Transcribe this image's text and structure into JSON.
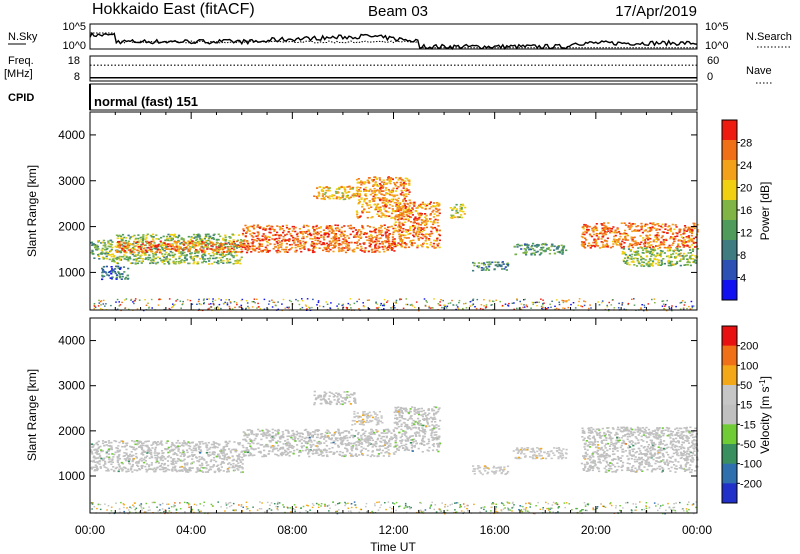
{
  "header": {
    "title": "Hokkaido East (fitACF)",
    "beam": "Beam 03",
    "date": "17/Apr/2019"
  },
  "sky_panel": {
    "left_label": "N.Sky",
    "right_label": "N.Search",
    "tick_top": "10^5",
    "tick_bottom": "10^0",
    "ylim_log10": [
      0,
      5
    ]
  },
  "freq_panel": {
    "left_label_1": "Freq.",
    "left_label_2": "[MHz]",
    "right_label": "Nave",
    "left_ticks": [
      "18",
      "8"
    ],
    "right_ticks": [
      "60",
      "0"
    ],
    "freq_mhz": 9.3,
    "nave": 38
  },
  "cpid_panel": {
    "label": "CPID",
    "program": "normal (fast) 151"
  },
  "colors": {
    "power_scale": [
      "#1010f0",
      "#2c50b4",
      "#3f7c82",
      "#4f9b5c",
      "#80b545",
      "#f0d010",
      "#f3a01a",
      "#f07018",
      "#ee1c10"
    ],
    "velocity_scale": [
      "#2030c8",
      "#2f6fae",
      "#3a8f5e",
      "#6fcc34",
      "#c0c0c0",
      "#c6c6c6",
      "#f3a818",
      "#f07018",
      "#e81010"
    ],
    "ground_scatter": "#b8b8b0"
  },
  "chart_data": [
    {
      "type": "heatmap",
      "name": "power",
      "xlabel": "",
      "ylabel": "Slant Range [km]",
      "xlim_hours": [
        0,
        24
      ],
      "ylim_km": [
        180,
        4500
      ],
      "y_ticks": [
        "1000",
        "2000",
        "3000",
        "4000"
      ],
      "colorbar": {
        "label": "Power [dB]",
        "range": [
          0,
          32
        ],
        "ticks": [
          "4",
          "8",
          "12",
          "16",
          "20",
          "24",
          "28"
        ]
      },
      "echo_regions": [
        {
          "t0": 0.0,
          "t1": 1.0,
          "r0": 1250,
          "r1": 1720,
          "value": 14
        },
        {
          "t0": 0.4,
          "t1": 1.5,
          "r0": 850,
          "r1": 1150,
          "value": 8
        },
        {
          "t0": 1.0,
          "t1": 6.0,
          "r0": 1200,
          "r1": 1850,
          "value": 15
        },
        {
          "t0": 1.0,
          "t1": 6.0,
          "r0": 1450,
          "r1": 1700,
          "value": 26
        },
        {
          "t0": 6.0,
          "t1": 12.0,
          "r0": 1450,
          "r1": 2050,
          "value": 27
        },
        {
          "t0": 8.8,
          "t1": 10.5,
          "r0": 2600,
          "r1": 2900,
          "value": 22
        },
        {
          "t0": 10.5,
          "t1": 12.6,
          "r0": 2200,
          "r1": 3100,
          "value": 24
        },
        {
          "t0": 12.0,
          "t1": 13.8,
          "r0": 1550,
          "r1": 2550,
          "value": 25
        },
        {
          "t0": 14.2,
          "t1": 14.8,
          "r0": 2200,
          "r1": 2500,
          "value": 18
        },
        {
          "t0": 15.1,
          "t1": 16.5,
          "r0": 1050,
          "r1": 1250,
          "value": 12
        },
        {
          "t0": 16.7,
          "t1": 18.8,
          "r0": 1400,
          "r1": 1650,
          "value": 12
        },
        {
          "t0": 19.4,
          "t1": 24.0,
          "r0": 1550,
          "r1": 2100,
          "value": 26
        },
        {
          "t0": 21.0,
          "t1": 24.0,
          "r0": 1150,
          "r1": 1550,
          "value": 16
        }
      ]
    },
    {
      "type": "heatmap",
      "name": "velocity",
      "xlabel": "Time UT",
      "ylabel": "Slant Range [km]",
      "xlim_hours": [
        0,
        24
      ],
      "ylim_km": [
        180,
        4500
      ],
      "x_ticks": [
        "00:00",
        "04:00",
        "08:00",
        "12:00",
        "16:00",
        "20:00",
        "00:00"
      ],
      "y_ticks": [
        "1000",
        "2000",
        "3000",
        "4000"
      ],
      "colorbar": {
        "label": "Velocity",
        "unit": "m s",
        "unit_sup": "-1",
        "range": [
          -250,
          250
        ],
        "ticks": [
          "200",
          "100",
          "50",
          "15",
          "-15",
          "-50",
          "-100",
          "-200"
        ]
      },
      "echo_regions": [
        {
          "t0": 0.0,
          "t1": 6.0,
          "r0": 1100,
          "r1": 1800,
          "value": 0
        },
        {
          "t0": 6.0,
          "t1": 12.0,
          "r0": 1450,
          "r1": 2050,
          "value": 0
        },
        {
          "t0": 8.8,
          "t1": 10.5,
          "r0": 2600,
          "r1": 2900,
          "value": 0
        },
        {
          "t0": 10.3,
          "t1": 11.6,
          "r0": 2150,
          "r1": 2450,
          "value": 60
        },
        {
          "t0": 12.0,
          "t1": 13.8,
          "r0": 1550,
          "r1": 2550,
          "value": 0
        },
        {
          "t0": 15.1,
          "t1": 16.5,
          "r0": 1050,
          "r1": 1250,
          "value": 60
        },
        {
          "t0": 16.7,
          "t1": 18.8,
          "r0": 1400,
          "r1": 1650,
          "value": 60
        },
        {
          "t0": 19.4,
          "t1": 24.0,
          "r0": 1100,
          "r1": 2100,
          "value": 0
        }
      ]
    }
  ]
}
